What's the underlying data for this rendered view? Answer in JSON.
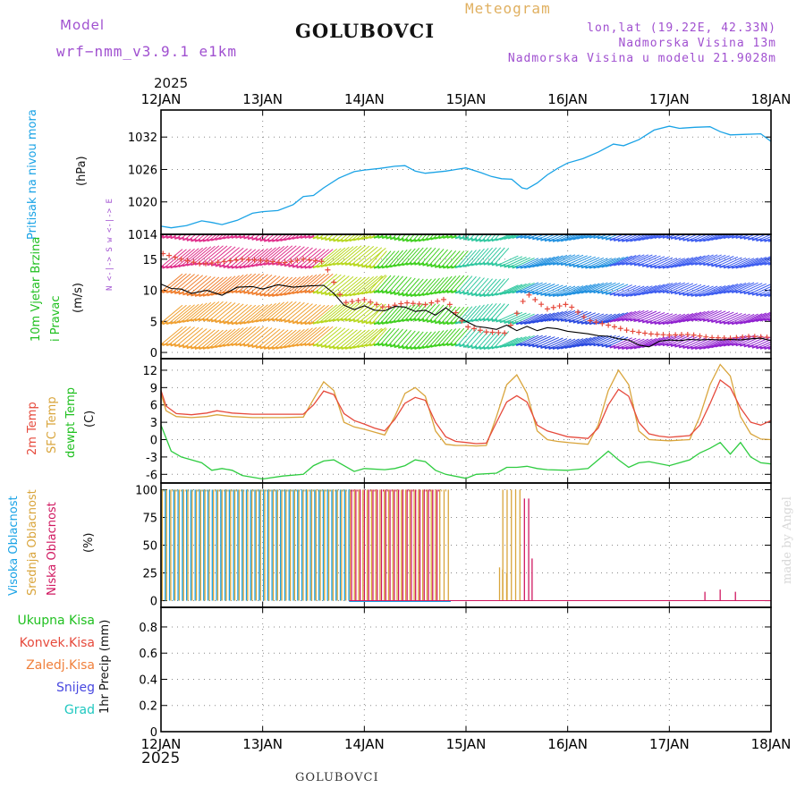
{
  "header": {
    "model_label": "Model",
    "model_name": "wrf−nmm_v3.9.1  e1km",
    "station_title": "GOLUBOVCI",
    "product": "Meteogram",
    "lonlat": "lon,lat (19.22E, 42.33N)",
    "elevation": "Nadmorska Visina 13m",
    "model_elevation": "Nadmorska Visina u modelu 21.9028m",
    "footer_station": "GOLUBOVCI",
    "credit": "made by Angel"
  },
  "axis": {
    "year": "2025",
    "day_labels": [
      "12JAN",
      "13JAN",
      "14JAN",
      "15JAN",
      "16JAN",
      "17JAN",
      "18JAN"
    ]
  },
  "colors": {
    "pressure": "#1aa3e6",
    "wind_mean": "#000000",
    "wind_gust": "#e64a3c",
    "temp_2m": "#e64a3c",
    "temp_sfc": "#d9a53c",
    "dewpoint": "#2ecc40",
    "cloud_high": "#1aa3e6",
    "cloud_mid": "#d9a53c",
    "cloud_low": "#d01860",
    "precip_total": "#2ecc40",
    "precip_conv": "#e64a3c",
    "precip_frz": "#f0803c",
    "snow": "#4848e0",
    "graupel": "#20c8c0",
    "header_purple": "#a050d0",
    "meteogram_title": "#e0b060"
  },
  "chart_data": [
    {
      "id": "pressure",
      "type": "line",
      "ylabel": "Pritisak na nivou mora",
      "unit": "(hPa)",
      "ylim": [
        1014,
        1037
      ],
      "yticks": [
        1014,
        1020,
        1026,
        1032
      ],
      "grid": true,
      "series": [
        {
          "x": [
            12.0,
            12.1,
            12.25,
            12.4,
            12.5,
            12.6,
            12.75,
            12.9,
            13.0,
            13.15,
            13.3,
            13.4,
            13.5,
            13.6,
            13.75,
            13.9,
            14.0,
            14.15,
            14.3,
            14.4,
            14.5,
            14.6,
            14.8,
            15.0,
            15.15,
            15.25,
            15.35,
            15.45,
            15.55,
            15.6,
            15.7,
            15.8,
            15.9,
            16.0,
            16.15,
            16.3,
            16.45,
            16.55,
            16.7,
            16.85,
            17.0,
            17.1,
            17.25,
            17.4,
            17.5,
            17.6,
            17.75,
            17.9,
            18.0
          ],
          "y": [
            1015.5,
            1015.2,
            1015.6,
            1016.5,
            1016.2,
            1015.8,
            1016.6,
            1017.9,
            1018.2,
            1018.4,
            1019.5,
            1021.0,
            1021.2,
            1022.6,
            1024.4,
            1025.6,
            1025.9,
            1026.2,
            1026.6,
            1026.7,
            1025.7,
            1025.3,
            1025.7,
            1026.3,
            1025.4,
            1024.7,
            1024.3,
            1024.2,
            1022.6,
            1022.4,
            1023.5,
            1025.0,
            1026.2,
            1027.2,
            1028.0,
            1029.2,
            1030.7,
            1030.4,
            1031.5,
            1033.3,
            1034.0,
            1033.6,
            1033.8,
            1033.9,
            1033.0,
            1032.4,
            1032.5,
            1032.6,
            1031.2
          ]
        }
      ]
    },
    {
      "id": "wind",
      "type": "line",
      "ylabel": "10m Vjetar Brzina i Pravac",
      "unit": "(m/s)",
      "direction_key": "N <-|-> S   w <-|-> E",
      "ylim": [
        -1,
        19
      ],
      "yticks": [
        0,
        5,
        10,
        15
      ],
      "grid": true,
      "series": [
        {
          "name": "mean",
          "x": [
            12.0,
            12.1,
            12.2,
            12.3,
            12.45,
            12.6,
            12.75,
            12.9,
            13.0,
            13.15,
            13.3,
            13.45,
            13.6,
            13.7,
            13.8,
            13.9,
            14.0,
            14.1,
            14.2,
            14.3,
            14.4,
            14.5,
            14.6,
            14.7,
            14.8,
            14.9,
            15.0,
            15.1,
            15.2,
            15.3,
            15.4,
            15.5,
            15.6,
            15.7,
            15.8,
            15.9,
            16.0,
            16.1,
            16.2,
            16.3,
            16.4,
            16.5,
            16.6,
            16.7,
            16.8,
            16.9,
            17.0,
            17.1,
            17.2,
            17.3,
            17.4,
            17.5,
            17.6,
            17.7,
            17.8,
            17.9,
            18.0
          ],
          "y": [
            11.0,
            10.3,
            10.2,
            9.5,
            10.0,
            9.2,
            10.5,
            10.6,
            10.2,
            10.9,
            10.5,
            10.7,
            10.8,
            9.5,
            7.6,
            6.9,
            7.5,
            6.8,
            6.7,
            7.4,
            7.3,
            6.6,
            6.8,
            6.0,
            7.2,
            6.0,
            5.0,
            4.2,
            4.0,
            3.7,
            4.4,
            3.5,
            4.2,
            3.5,
            4.0,
            3.8,
            3.4,
            3.2,
            3.0,
            2.7,
            2.6,
            2.2,
            2.0,
            1.2,
            0.9,
            1.8,
            2.0,
            1.9,
            2.1,
            2.0,
            2.1,
            2.0,
            2.1,
            2.0,
            2.2,
            2.3,
            1.9
          ]
        },
        {
          "name": "gust",
          "x": [
            12.0,
            12.2,
            12.4,
            12.6,
            12.8,
            13.0,
            13.2,
            13.4,
            13.6,
            13.8,
            14.0,
            14.2,
            14.4,
            14.6,
            14.8,
            15.0,
            15.2,
            15.4,
            15.6,
            15.8,
            16.0,
            16.2,
            16.4,
            16.6,
            16.8,
            17.0,
            17.2,
            17.4,
            17.6,
            17.8,
            18.0
          ],
          "y": [
            16.0,
            15.0,
            14.2,
            14.6,
            15.0,
            14.8,
            14.4,
            15.0,
            14.6,
            8.0,
            8.5,
            7.2,
            8.0,
            7.7,
            8.6,
            4.2,
            3.3,
            3.1,
            9.5,
            7.0,
            7.8,
            5.2,
            4.4,
            3.5,
            3.0,
            2.8,
            2.9,
            2.4,
            2.3,
            2.6,
            2.4
          ]
        }
      ]
    },
    {
      "id": "temperature",
      "type": "line",
      "ylabels": [
        "2m Temp",
        "SFC Temp",
        "dewpt Temp"
      ],
      "unit": "(C)",
      "ylim": [
        -7.5,
        14
      ],
      "yticks": [
        -6,
        -3,
        0,
        3,
        6,
        9,
        12
      ],
      "grid": true,
      "series": [
        {
          "name": "2m Temp",
          "x": [
            12.0,
            12.05,
            12.15,
            12.3,
            12.45,
            12.55,
            12.7,
            12.9,
            13.0,
            13.2,
            13.4,
            13.5,
            13.6,
            13.7,
            13.8,
            13.9,
            14.0,
            14.1,
            14.2,
            14.3,
            14.4,
            14.5,
            14.6,
            14.7,
            14.8,
            14.9,
            15.0,
            15.1,
            15.2,
            15.3,
            15.4,
            15.5,
            15.6,
            15.7,
            15.8,
            15.9,
            16.0,
            16.2,
            16.3,
            16.4,
            16.5,
            16.6,
            16.7,
            16.8,
            16.9,
            17.0,
            17.2,
            17.3,
            17.4,
            17.5,
            17.6,
            17.7,
            17.8,
            17.9,
            18.0
          ],
          "y": [
            8.5,
            5.8,
            4.5,
            4.3,
            4.6,
            5.0,
            4.6,
            4.4,
            4.4,
            4.4,
            4.4,
            6.0,
            8.4,
            7.8,
            4.5,
            3.3,
            2.7,
            2.0,
            1.5,
            3.5,
            6.3,
            7.3,
            6.8,
            3.0,
            0.5,
            -0.3,
            -0.5,
            -0.7,
            -0.6,
            3.0,
            6.5,
            7.6,
            6.5,
            2.5,
            1.5,
            1.0,
            0.5,
            0.2,
            2.0,
            6.0,
            8.7,
            7.5,
            3.0,
            1.0,
            0.6,
            0.4,
            0.7,
            2.5,
            6.2,
            10.3,
            9.0,
            5.5,
            3.0,
            2.5,
            3.3
          ]
        },
        {
          "name": "SFC Temp",
          "x": [
            12.0,
            12.05,
            12.15,
            12.3,
            12.45,
            12.55,
            12.7,
            12.9,
            13.0,
            13.2,
            13.4,
            13.5,
            13.6,
            13.7,
            13.8,
            13.9,
            14.0,
            14.1,
            14.2,
            14.3,
            14.4,
            14.5,
            14.6,
            14.7,
            14.8,
            14.9,
            15.0,
            15.1,
            15.2,
            15.3,
            15.4,
            15.5,
            15.6,
            15.7,
            15.8,
            15.9,
            16.0,
            16.2,
            16.3,
            16.4,
            16.5,
            16.6,
            16.7,
            16.8,
            16.9,
            17.0,
            17.2,
            17.3,
            17.4,
            17.5,
            17.6,
            17.7,
            17.8,
            17.9,
            18.0
          ],
          "y": [
            8.0,
            5.0,
            4.0,
            3.8,
            4.0,
            4.3,
            4.0,
            3.8,
            3.8,
            3.8,
            3.9,
            7.0,
            10.0,
            8.5,
            3.0,
            2.2,
            1.8,
            1.3,
            0.8,
            4.0,
            8.0,
            9.0,
            7.5,
            1.5,
            -0.8,
            -1.0,
            -1.0,
            -1.1,
            -1.0,
            4.0,
            9.5,
            11.2,
            8.0,
            1.5,
            0.0,
            -0.3,
            -0.5,
            -0.8,
            2.5,
            8.5,
            12.0,
            9.5,
            1.5,
            0.0,
            -0.1,
            -0.2,
            0.0,
            4.0,
            9.5,
            13.0,
            11.0,
            4.0,
            1.0,
            0.1,
            0.0
          ]
        },
        {
          "name": "dewpt Temp",
          "x": [
            12.0,
            12.1,
            12.2,
            12.3,
            12.4,
            12.5,
            12.6,
            12.7,
            12.8,
            13.0,
            13.2,
            13.4,
            13.5,
            13.6,
            13.7,
            13.8,
            13.9,
            14.0,
            14.2,
            14.3,
            14.4,
            14.5,
            14.6,
            14.7,
            14.8,
            15.0,
            15.1,
            15.3,
            15.4,
            15.5,
            15.6,
            15.7,
            15.8,
            16.0,
            16.2,
            16.3,
            16.4,
            16.5,
            16.6,
            16.7,
            16.8,
            17.0,
            17.2,
            17.3,
            17.4,
            17.5,
            17.6,
            17.7,
            17.8,
            17.9,
            18.0
          ],
          "y": [
            2.5,
            -2.0,
            -3.0,
            -3.5,
            -4.0,
            -5.3,
            -5.0,
            -5.3,
            -6.2,
            -6.8,
            -6.3,
            -6.0,
            -4.5,
            -3.7,
            -3.5,
            -4.5,
            -5.5,
            -5.0,
            -5.2,
            -5.0,
            -4.5,
            -3.5,
            -3.8,
            -5.3,
            -6.0,
            -6.7,
            -6.0,
            -5.8,
            -4.8,
            -4.8,
            -4.6,
            -5.0,
            -5.2,
            -5.3,
            -5.0,
            -3.5,
            -2.0,
            -3.5,
            -4.8,
            -4.0,
            -3.8,
            -4.5,
            -3.5,
            -2.3,
            -1.5,
            -0.5,
            -2.5,
            -0.5,
            -3.0,
            -4.0,
            -4.2
          ]
        }
      ]
    },
    {
      "id": "cloud",
      "type": "bar",
      "ylabels": [
        "Visoka Oblacnost",
        "Srednja Oblacnost",
        "Niska Oblacnost"
      ],
      "unit": "(%)",
      "ylim": [
        -6,
        106
      ],
      "yticks": [
        0,
        25,
        50,
        75,
        100
      ],
      "grid": true,
      "series": [
        {
          "name": "Visoka Oblacnost",
          "segments": [
            [
              12.0,
              13.85,
              100
            ]
          ],
          "x": [
            13.9,
            14.3
          ],
          "y": [
            0,
            0
          ]
        },
        {
          "name": "Srednja Oblacnost",
          "segments": [
            [
              12.0,
              14.85,
              100
            ],
            [
              15.35,
              15.55,
              100
            ]
          ],
          "x": [
            15.33,
            15.36,
            15.4
          ],
          "y": [
            30,
            28,
            25
          ]
        },
        {
          "name": "Niska Oblacnost",
          "segments": [
            [
              13.85,
              14.7,
              100
            ],
            [
              15.55,
              15.63,
              92
            ]
          ],
          "x": [
            15.65,
            17.35,
            17.5,
            17.65
          ],
          "y": [
            38,
            8,
            10,
            8
          ]
        }
      ]
    },
    {
      "id": "precip",
      "type": "line",
      "ylabel": "1hr Precip (mm)",
      "legend": [
        "Ukupna Kisa",
        "Konvek.Kisa",
        "Zaledj.Kisa",
        "Snijeg",
        "Grad"
      ],
      "ylim": [
        0,
        0.95
      ],
      "yticks": [
        0,
        0.2,
        0.4,
        0.6,
        0.8
      ],
      "grid": true,
      "series": []
    }
  ]
}
